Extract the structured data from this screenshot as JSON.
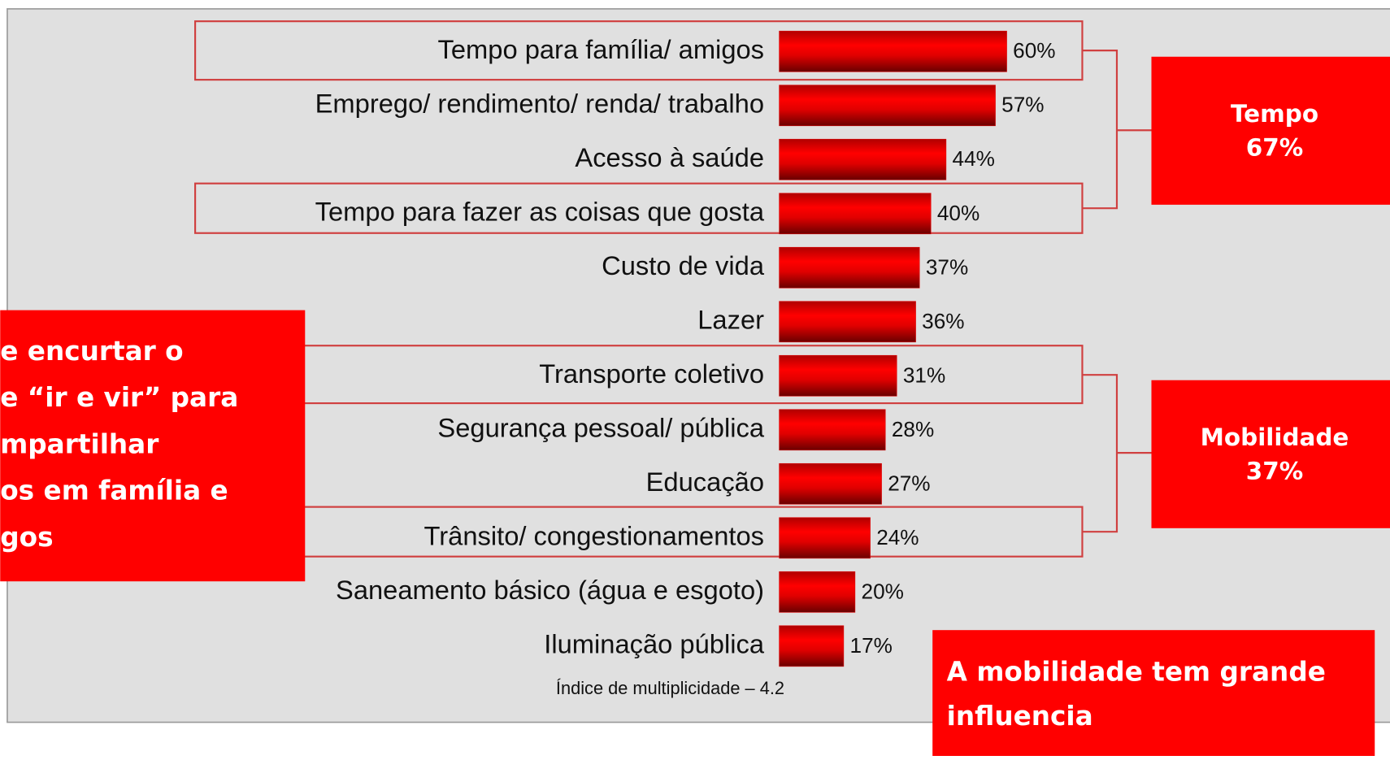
{
  "chart_data": {
    "type": "bar",
    "orientation": "horizontal",
    "categories": [
      "Tempo para família/ amigos",
      "Emprego/ rendimento/ renda/ trabalho",
      "Acesso à saúde",
      "Tempo para fazer as coisas que gosta",
      "Custo de vida",
      "Lazer",
      "Transporte coletivo",
      "Segurança pessoal/ pública",
      "Educação",
      "Trânsito/ congestionamentos",
      "Saneamento básico (água e esgoto)",
      "Iluminação pública"
    ],
    "values": [
      60,
      57,
      44,
      40,
      37,
      36,
      31,
      28,
      27,
      24,
      20,
      17
    ],
    "value_labels": [
      "60%",
      "57%",
      "44%",
      "40%",
      "37%",
      "36%",
      "31%",
      "28%",
      "27%",
      "24%",
      "20%",
      "17%"
    ],
    "color": "#e00000",
    "footnote": "Índice de multiplicidade – 4.2",
    "groups": [
      {
        "title": "Tempo",
        "value_label": "67%"
      },
      {
        "title": "Mobilidade",
        "value_label": "37%"
      }
    ],
    "left_callout": [
      "e encurtar o",
      "e “ir e vir” para",
      "mpartilhar",
      "os em família e",
      "gos"
    ],
    "bottom_callout": [
      "A mobilidade tem grande",
      "influencia"
    ]
  }
}
